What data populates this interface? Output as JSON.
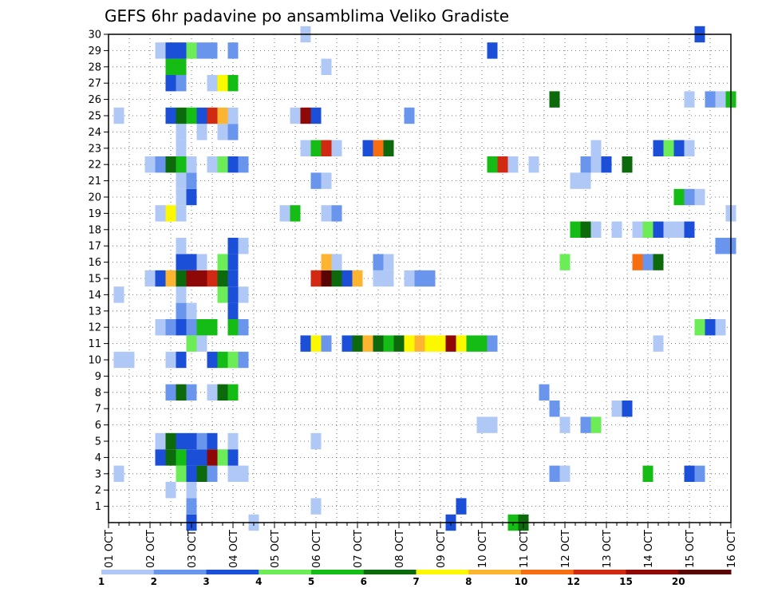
{
  "chart_data": {
    "type": "heatmap",
    "title": "GEFS 6hr padavine po ansamblima Veliko Gradiste",
    "x_ticks": [
      "01 OCT",
      "02 OCT",
      "03 OCT",
      "04 OCT",
      "05 OCT",
      "06 OCT",
      "07 OCT",
      "08 OCT",
      "09 OCT",
      "10 OCT",
      "11 OCT",
      "12 OCT",
      "13 OCT",
      "14 OCT",
      "15 OCT",
      "16 OCT"
    ],
    "y_ticks": [
      "1",
      "2",
      "3",
      "4",
      "5",
      "6",
      "7",
      "8",
      "9",
      "10",
      "11",
      "12",
      "13",
      "14",
      "15",
      "16",
      "17",
      "18",
      "19",
      "20",
      "21",
      "22",
      "23",
      "24",
      "25",
      "26",
      "27",
      "28",
      "29",
      "30"
    ],
    "xlim": [
      0,
      60
    ],
    "ylim": [
      0,
      30
    ],
    "colorbar": {
      "labels": [
        "1",
        "2",
        "3",
        "4",
        "5",
        "6",
        "7",
        "8",
        "10",
        "12",
        "15",
        "20"
      ],
      "colors": [
        "#b0c8f5",
        "#6a95ed",
        "#1c4fd8",
        "#6ced58",
        "#16bc16",
        "#0c6a0c",
        "#fcf800",
        "#fcb431",
        "#f76d12",
        "#d22a12",
        "#8e0808",
        "#5a0505"
      ]
    },
    "cells": [
      [
        8,
        0,
        3
      ],
      [
        8,
        1,
        2
      ],
      [
        8,
        2,
        1
      ],
      [
        14,
        0,
        1
      ],
      [
        20,
        1,
        1
      ],
      [
        33,
        0,
        3
      ],
      [
        39,
        0,
        5
      ],
      [
        40,
        0,
        6
      ],
      [
        34,
        1,
        3
      ],
      [
        6,
        2,
        1
      ],
      [
        8,
        2,
        1
      ],
      [
        1,
        3,
        1
      ],
      [
        7,
        3,
        4
      ],
      [
        8,
        3,
        3
      ],
      [
        9,
        3,
        6
      ],
      [
        10,
        3,
        2
      ],
      [
        12,
        3,
        1
      ],
      [
        13,
        3,
        1
      ],
      [
        43,
        3,
        2
      ],
      [
        44,
        3,
        1
      ],
      [
        52,
        3,
        5
      ],
      [
        56,
        3,
        3
      ],
      [
        57,
        3,
        2
      ],
      [
        5,
        4,
        3
      ],
      [
        6,
        4,
        6
      ],
      [
        7,
        4,
        5
      ],
      [
        8,
        4,
        3
      ],
      [
        9,
        4,
        3
      ],
      [
        10,
        4,
        11
      ],
      [
        11,
        4,
        4
      ],
      [
        12,
        4,
        3
      ],
      [
        5,
        5,
        1
      ],
      [
        6,
        5,
        6
      ],
      [
        7,
        5,
        3
      ],
      [
        8,
        5,
        3
      ],
      [
        9,
        5,
        2
      ],
      [
        10,
        5,
        3
      ],
      [
        12,
        5,
        1
      ],
      [
        20,
        5,
        1
      ],
      [
        36,
        6,
        1
      ],
      [
        37,
        6,
        1
      ],
      [
        44,
        6,
        1
      ],
      [
        46,
        6,
        2
      ],
      [
        47,
        6,
        4
      ],
      [
        43,
        7,
        2
      ],
      [
        49,
        7,
        1
      ],
      [
        50,
        7,
        3
      ],
      [
        6,
        8,
        2
      ],
      [
        7,
        8,
        6
      ],
      [
        8,
        8,
        2
      ],
      [
        10,
        8,
        1
      ],
      [
        11,
        8,
        6
      ],
      [
        12,
        8,
        5
      ],
      [
        42,
        8,
        2
      ],
      [
        1,
        10,
        1
      ],
      [
        2,
        10,
        1
      ],
      [
        6,
        10,
        1
      ],
      [
        7,
        10,
        3
      ],
      [
        10,
        10,
        3
      ],
      [
        11,
        10,
        5
      ],
      [
        12,
        10,
        4
      ],
      [
        13,
        10,
        2
      ],
      [
        8,
        11,
        4
      ],
      [
        9,
        11,
        1
      ],
      [
        19,
        11,
        3
      ],
      [
        20,
        11,
        7
      ],
      [
        21,
        11,
        2
      ],
      [
        23,
        11,
        3
      ],
      [
        24,
        11,
        6
      ],
      [
        25,
        11,
        8
      ],
      [
        26,
        11,
        6
      ],
      [
        27,
        11,
        5
      ],
      [
        28,
        11,
        6
      ],
      [
        29,
        11,
        7
      ],
      [
        30,
        11,
        8
      ],
      [
        31,
        11,
        7
      ],
      [
        32,
        11,
        7
      ],
      [
        33,
        11,
        11
      ],
      [
        34,
        11,
        7
      ],
      [
        35,
        11,
        5
      ],
      [
        36,
        11,
        5
      ],
      [
        37,
        11,
        2
      ],
      [
        53,
        11,
        1
      ],
      [
        5,
        12,
        1
      ],
      [
        6,
        12,
        2
      ],
      [
        7,
        12,
        3
      ],
      [
        8,
        12,
        2
      ],
      [
        9,
        12,
        5
      ],
      [
        10,
        12,
        5
      ],
      [
        12,
        12,
        5
      ],
      [
        13,
        12,
        2
      ],
      [
        57,
        12,
        4
      ],
      [
        58,
        12,
        3
      ],
      [
        59,
        12,
        1
      ],
      [
        7,
        13,
        2
      ],
      [
        8,
        13,
        1
      ],
      [
        12,
        13,
        3
      ],
      [
        1,
        14,
        1
      ],
      [
        7,
        14,
        1
      ],
      [
        11,
        14,
        4
      ],
      [
        12,
        14,
        3
      ],
      [
        13,
        14,
        1
      ],
      [
        4,
        15,
        1
      ],
      [
        5,
        15,
        3
      ],
      [
        6,
        15,
        8
      ],
      [
        7,
        15,
        6
      ],
      [
        8,
        15,
        11
      ],
      [
        9,
        15,
        11
      ],
      [
        10,
        15,
        10
      ],
      [
        11,
        15,
        6
      ],
      [
        12,
        15,
        3
      ],
      [
        20,
        15,
        10
      ],
      [
        21,
        15,
        12
      ],
      [
        22,
        15,
        6
      ],
      [
        23,
        15,
        3
      ],
      [
        24,
        15,
        8
      ],
      [
        26,
        15,
        1
      ],
      [
        27,
        15,
        1
      ],
      [
        29,
        15,
        1
      ],
      [
        30,
        15,
        2
      ],
      [
        31,
        15,
        2
      ],
      [
        7,
        16,
        3
      ],
      [
        8,
        16,
        3
      ],
      [
        9,
        16,
        1
      ],
      [
        11,
        16,
        4
      ],
      [
        12,
        16,
        3
      ],
      [
        21,
        16,
        8
      ],
      [
        22,
        16,
        1
      ],
      [
        26,
        16,
        2
      ],
      [
        27,
        16,
        1
      ],
      [
        44,
        16,
        4
      ],
      [
        51,
        16,
        9
      ],
      [
        52,
        16,
        2
      ],
      [
        53,
        16,
        6
      ],
      [
        7,
        17,
        1
      ],
      [
        12,
        17,
        3
      ],
      [
        13,
        17,
        1
      ],
      [
        59,
        17,
        2
      ],
      [
        60,
        17,
        2
      ],
      [
        45,
        18,
        5
      ],
      [
        46,
        18,
        6
      ],
      [
        47,
        18,
        1
      ],
      [
        49,
        18,
        1
      ],
      [
        51,
        18,
        1
      ],
      [
        52,
        18,
        4
      ],
      [
        53,
        18,
        3
      ],
      [
        54,
        18,
        1
      ],
      [
        55,
        18,
        1
      ],
      [
        56,
        18,
        3
      ],
      [
        5,
        19,
        1
      ],
      [
        6,
        19,
        7
      ],
      [
        7,
        19,
        1
      ],
      [
        17,
        19,
        1
      ],
      [
        18,
        19,
        5
      ],
      [
        21,
        19,
        1
      ],
      [
        22,
        19,
        2
      ],
      [
        60,
        19,
        1
      ],
      [
        7,
        20,
        1
      ],
      [
        8,
        20,
        3
      ],
      [
        55,
        20,
        5
      ],
      [
        56,
        20,
        2
      ],
      [
        57,
        20,
        1
      ],
      [
        7,
        21,
        1
      ],
      [
        8,
        21,
        2
      ],
      [
        20,
        21,
        2
      ],
      [
        21,
        21,
        1
      ],
      [
        45,
        21,
        1
      ],
      [
        46,
        21,
        1
      ],
      [
        4,
        22,
        1
      ],
      [
        5,
        22,
        2
      ],
      [
        6,
        22,
        6
      ],
      [
        7,
        22,
        5
      ],
      [
        8,
        22,
        1
      ],
      [
        10,
        22,
        1
      ],
      [
        11,
        22,
        4
      ],
      [
        12,
        22,
        3
      ],
      [
        13,
        22,
        2
      ],
      [
        37,
        22,
        5
      ],
      [
        38,
        22,
        10
      ],
      [
        39,
        22,
        1
      ],
      [
        41,
        22,
        1
      ],
      [
        46,
        22,
        2
      ],
      [
        47,
        22,
        1
      ],
      [
        48,
        22,
        3
      ],
      [
        50,
        22,
        6
      ],
      [
        7,
        23,
        1
      ],
      [
        19,
        23,
        1
      ],
      [
        20,
        23,
        5
      ],
      [
        21,
        23,
        10
      ],
      [
        22,
        23,
        1
      ],
      [
        25,
        23,
        3
      ],
      [
        26,
        23,
        9
      ],
      [
        27,
        23,
        6
      ],
      [
        47,
        23,
        1
      ],
      [
        53,
        23,
        3
      ],
      [
        54,
        23,
        4
      ],
      [
        55,
        23,
        3
      ],
      [
        56,
        23,
        1
      ],
      [
        7,
        24,
        1
      ],
      [
        9,
        24,
        1
      ],
      [
        11,
        24,
        1
      ],
      [
        12,
        24,
        2
      ],
      [
        1,
        25,
        1
      ],
      [
        6,
        25,
        3
      ],
      [
        7,
        25,
        6
      ],
      [
        8,
        25,
        5
      ],
      [
        9,
        25,
        3
      ],
      [
        10,
        25,
        10
      ],
      [
        11,
        25,
        8
      ],
      [
        12,
        25,
        1
      ],
      [
        18,
        25,
        1
      ],
      [
        19,
        25,
        11
      ],
      [
        20,
        25,
        3
      ],
      [
        29,
        25,
        2
      ],
      [
        43,
        26,
        6
      ],
      [
        56,
        26,
        1
      ],
      [
        58,
        26,
        2
      ],
      [
        59,
        26,
        1
      ],
      [
        60,
        26,
        5
      ],
      [
        6,
        27,
        3
      ],
      [
        7,
        27,
        2
      ],
      [
        10,
        27,
        1
      ],
      [
        11,
        27,
        7
      ],
      [
        12,
        27,
        5
      ],
      [
        6,
        28,
        5
      ],
      [
        7,
        28,
        5
      ],
      [
        21,
        28,
        1
      ],
      [
        5,
        29,
        1
      ],
      [
        6,
        29,
        3
      ],
      [
        7,
        29,
        3
      ],
      [
        8,
        29,
        4
      ],
      [
        9,
        29,
        2
      ],
      [
        10,
        29,
        2
      ],
      [
        12,
        29,
        2
      ],
      [
        37,
        29,
        3
      ],
      [
        19,
        30,
        1
      ],
      [
        57,
        30,
        3
      ]
    ]
  }
}
